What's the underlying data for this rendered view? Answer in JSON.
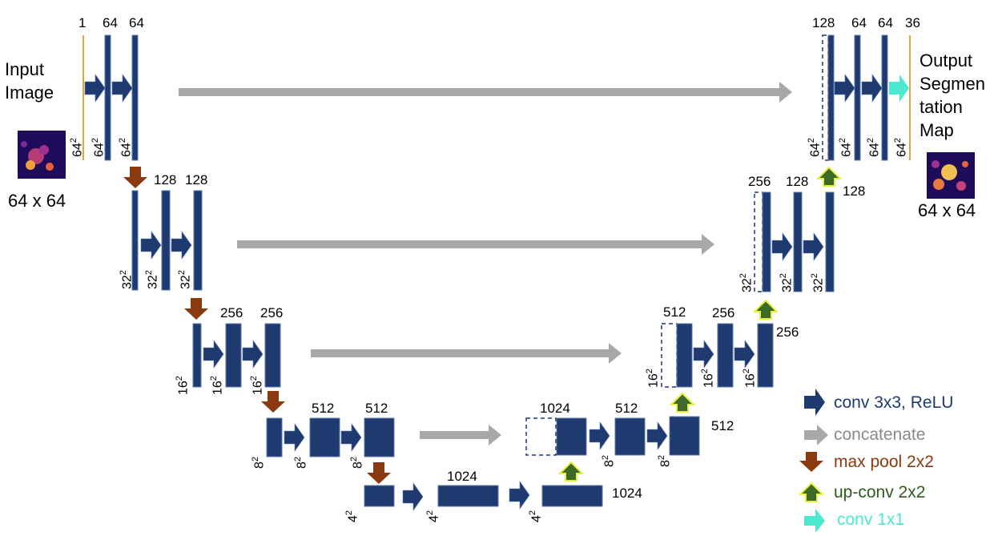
{
  "input": {
    "title_line1": "Input",
    "title_line2": "Image",
    "size": "64 x 64"
  },
  "output": {
    "title_line1": "Output",
    "title_line2": "Segmen",
    "title_line3": "tation",
    "title_line4": "Map",
    "size": "64 x 64"
  },
  "channels": {
    "l1": [
      "1",
      "64",
      "64"
    ],
    "l2": [
      "128",
      "128"
    ],
    "l3": [
      "256",
      "256"
    ],
    "l4": [
      "512",
      "512"
    ],
    "l5": [
      "1024"
    ],
    "r5": "1024",
    "r4": [
      "1024",
      "512",
      "512"
    ],
    "r3": [
      "512",
      "256",
      "256"
    ],
    "r2": [
      "256",
      "128",
      "128"
    ],
    "r1": [
      "128",
      "64",
      "64",
      "36"
    ]
  },
  "sizes": {
    "s64": "64",
    "s32": "32",
    "s16": "16",
    "s8": "8",
    "s4": "4",
    "exp": "2"
  },
  "legend": {
    "conv": {
      "label": "conv 3x3, ReLU",
      "color": "#1f3a6e"
    },
    "concat": {
      "label": "concatenate",
      "color": "#999999"
    },
    "pool": {
      "label": "max pool 2x2",
      "color": "#8a3a0e"
    },
    "upconv": {
      "label": "up-conv 2x2",
      "color": "#2e5c1e"
    },
    "conv1": {
      "label": "conv 1x1",
      "color": "#4de8d0"
    }
  },
  "colors": {
    "block": "#1f3a6e",
    "input_line": "#e8a040"
  }
}
